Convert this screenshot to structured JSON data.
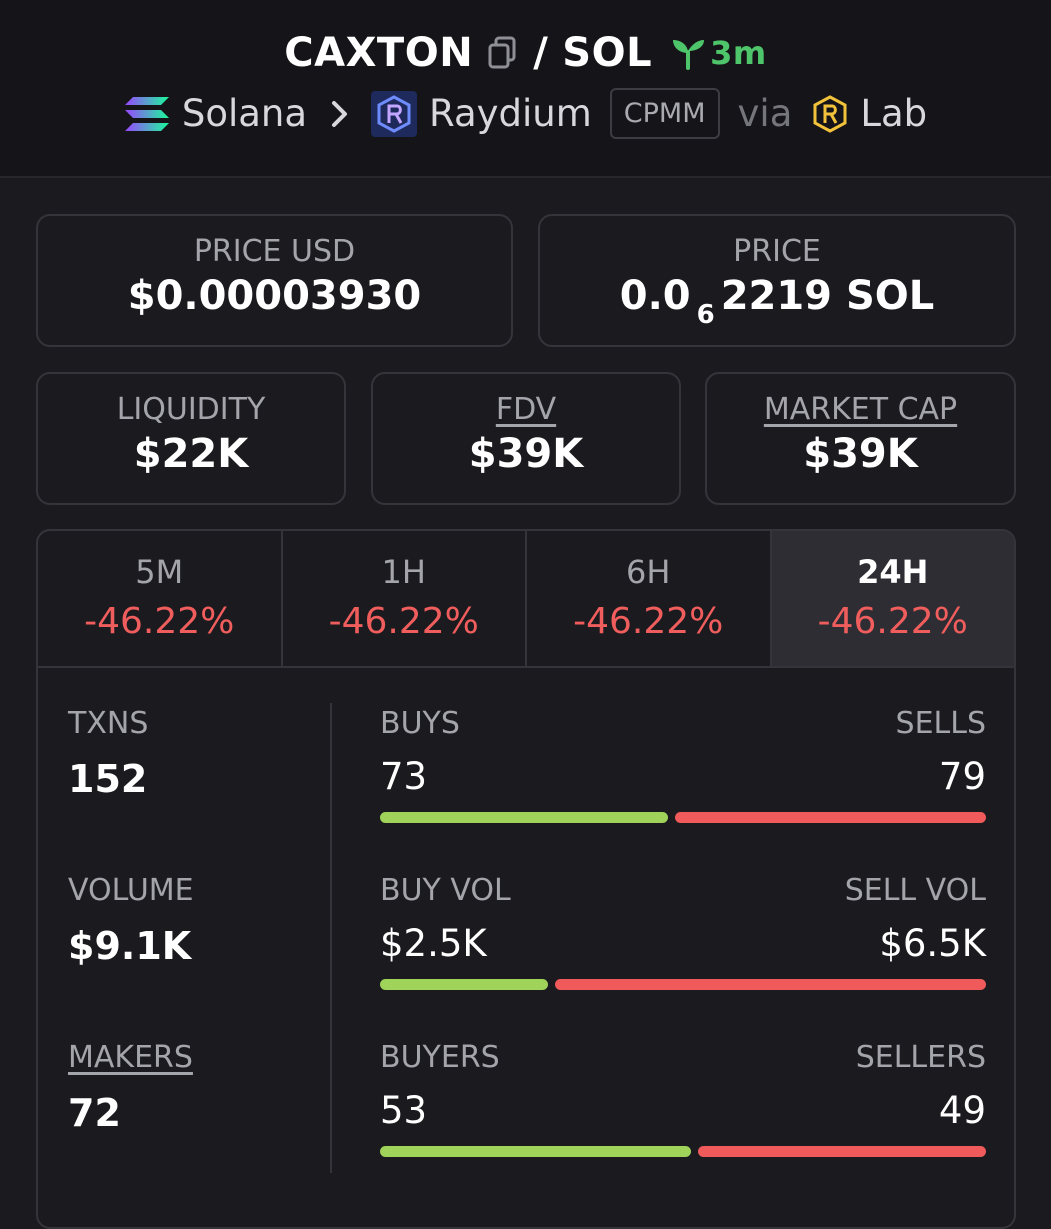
{
  "header": {
    "base_token": "CAXTON",
    "separator": "/",
    "quote_token": "SOL",
    "age": "3m",
    "chain": "Solana",
    "dex": "Raydium",
    "pool_type": "CPMM",
    "via": "via",
    "launchpad": "Lab"
  },
  "price_cards": {
    "price_usd_label": "PRICE USD",
    "price_usd_value": "$0.00003930",
    "price_label": "PRICE",
    "price_prefix": "0.0",
    "price_subscript": "6",
    "price_suffix": "2219 SOL"
  },
  "metrics": {
    "liquidity_label": "LIQUIDITY",
    "liquidity_value": "$22K",
    "fdv_label": "FDV",
    "fdv_value": "$39K",
    "mcap_label": "MARKET CAP",
    "mcap_value": "$39K"
  },
  "timeframes": [
    {
      "label": "5M",
      "change": "-46.22%"
    },
    {
      "label": "1H",
      "change": "-46.22%"
    },
    {
      "label": "6H",
      "change": "-46.22%"
    },
    {
      "label": "24H",
      "change": "-46.22%"
    }
  ],
  "active_timeframe": "24H",
  "stats": {
    "txns_label": "TXNS",
    "txns_value": "152",
    "volume_label": "VOLUME",
    "volume_value": "$9.1K",
    "makers_label": "MAKERS",
    "makers_value": "72",
    "buys_label": "BUYS",
    "buys_value": "73",
    "sells_label": "SELLS",
    "sells_value": "79",
    "buy_vol_label": "BUY VOL",
    "buy_vol_value": "$2.5K",
    "sell_vol_label": "SELL VOL",
    "sell_vol_value": "$6.5K",
    "buyers_label": "BUYERS",
    "buyers_value": "53",
    "sellers_label": "SELLERS",
    "sellers_value": "49"
  },
  "bar_ratios": {
    "txns_buy_fraction": 0.48,
    "volume_buy_fraction": 0.28,
    "makers_buy_fraction": 0.52
  },
  "colors": {
    "positive": "#9fd35a",
    "negative": "#f05a5a",
    "age_green": "#4ec56a"
  }
}
